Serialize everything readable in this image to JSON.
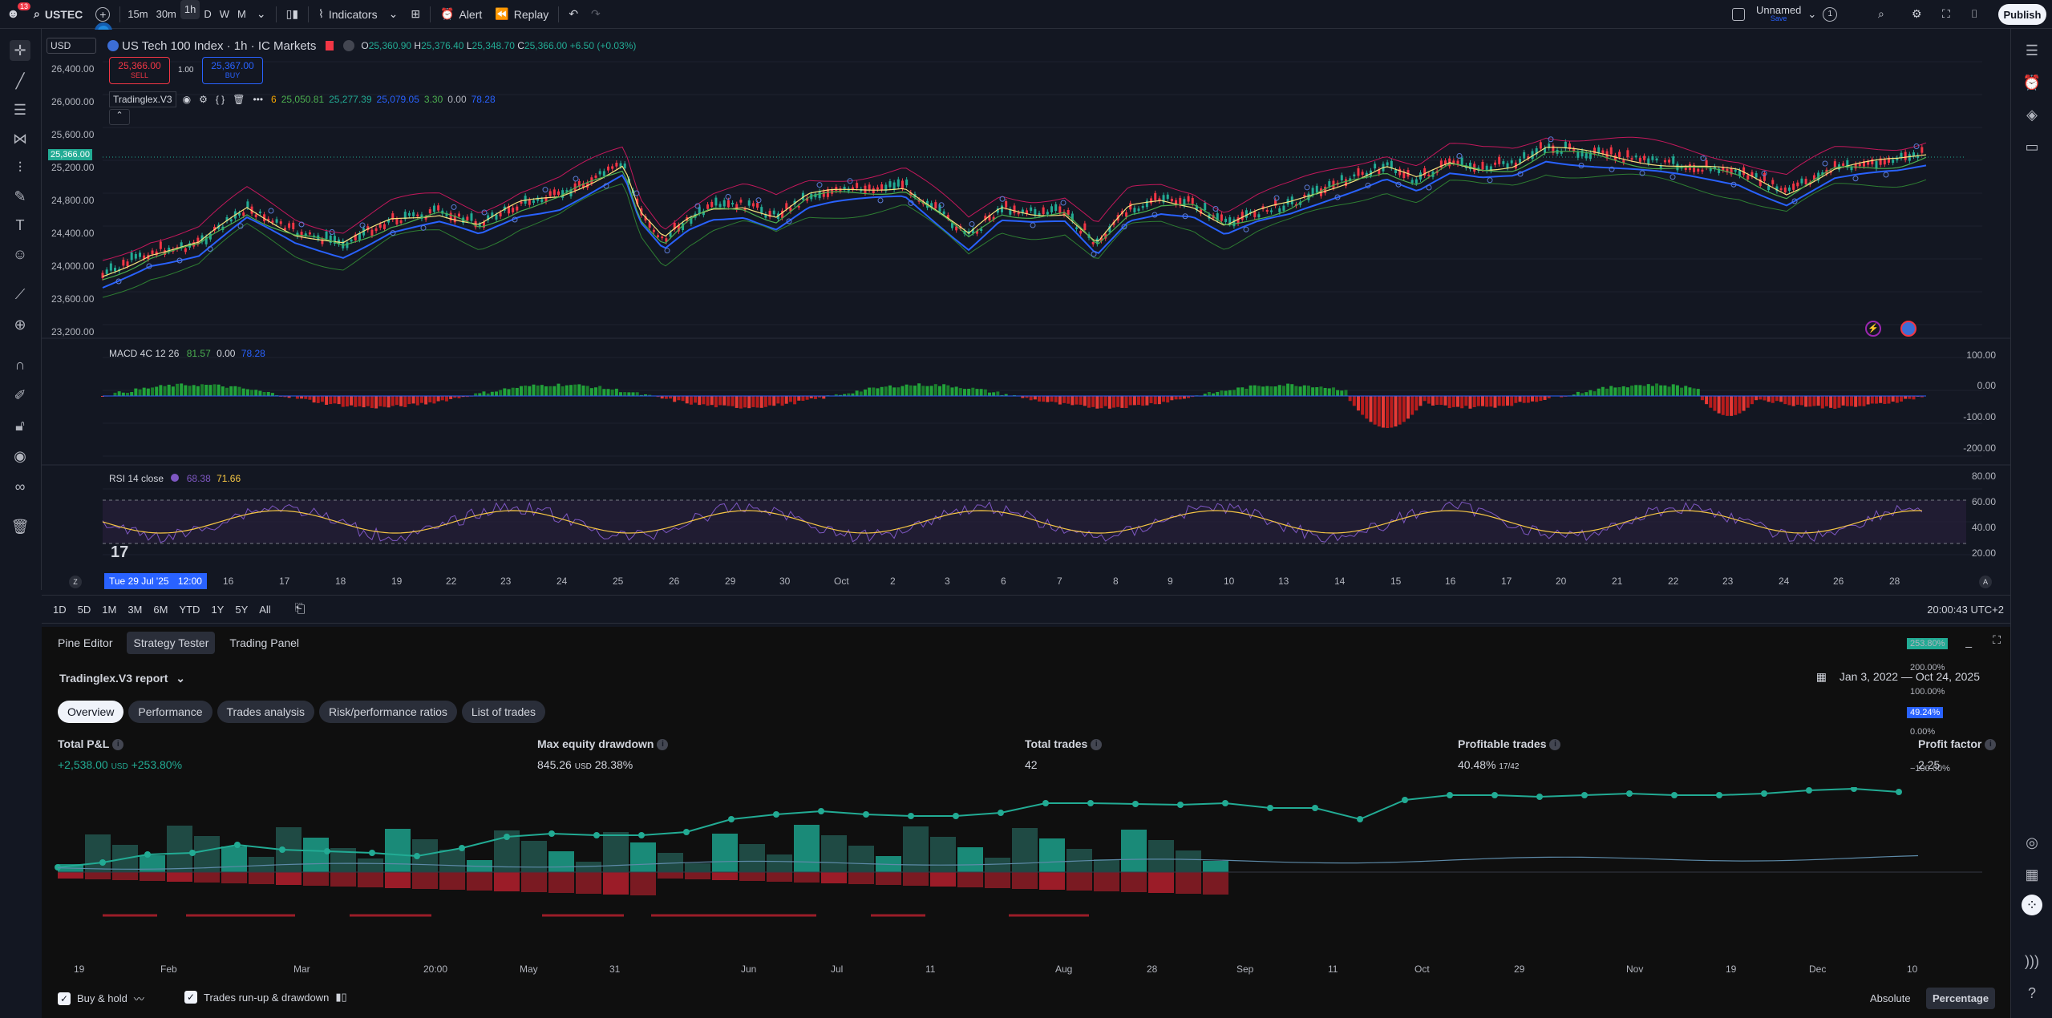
{
  "topbar": {
    "notif_count": "13",
    "symbol": "USTEC",
    "intervals": [
      "15m",
      "30m",
      "1h",
      "D",
      "W",
      "M"
    ],
    "indicators_label": "Indicators",
    "alert_label": "Alert",
    "replay_label": "Replay",
    "layout_name": "Unnamed",
    "layout_sub": "Save",
    "layout_count": "1",
    "publish_label": "Publish"
  },
  "legend": {
    "currency": "USD",
    "title": "US Tech 100 Index · 1h · IC Markets",
    "ohlc": {
      "o_label": "O",
      "o": "25,360.90",
      "h_label": "H",
      "h": "25,376.40",
      "l_label": "L",
      "l": "25,348.70",
      "c_label": "C",
      "c": "25,366.00",
      "chg": "+6.50 (+0.03%)"
    },
    "sell_price": "25,366.00",
    "sell_label": "SELL",
    "spread": "1.00",
    "buy_price": "25,367.00",
    "buy_label": "BUY",
    "indicator_name": "Tradinglex.V3",
    "indicator_vals": [
      "6",
      "25,050.81",
      "25,277.39",
      "25,079.05",
      "3.30",
      "0.00",
      "78.28"
    ]
  },
  "price_scale": [
    "26,400.00",
    "26,000.00",
    "25,600.00",
    "25,200.00",
    "24,800.00",
    "24,400.00",
    "24,000.00",
    "23,600.00",
    "23,200.00"
  ],
  "current_price": "25,366.00",
  "macd": {
    "label": "MACD 4C 12 26",
    "v1": "81.57",
    "v2": "0.00",
    "v3": "78.28",
    "scale": [
      "100.00",
      "0.00",
      "-100.00",
      "-200.00"
    ]
  },
  "rsi": {
    "label": "RSI 14 close",
    "v1": "68.38",
    "v2": "71.66",
    "scale": [
      "80.00",
      "60.00",
      "40.00",
      "20.00"
    ]
  },
  "time_axis": {
    "cursor_date": "Tue 29 Jul '25",
    "cursor_time": "12:00",
    "ticks": [
      "15",
      "16",
      "17",
      "18",
      "19",
      "22",
      "23",
      "24",
      "25",
      "26",
      "29",
      "30",
      "Oct",
      "2",
      "3",
      "6",
      "7",
      "8",
      "9",
      "10",
      "13",
      "14",
      "15",
      "16",
      "17",
      "20",
      "21",
      "22",
      "23",
      "24",
      "26",
      "28"
    ]
  },
  "ranges": [
    "1D",
    "5D",
    "1M",
    "3M",
    "6M",
    "YTD",
    "1Y",
    "5Y",
    "All"
  ],
  "clock": "20:00:43 UTC+2",
  "panel_tabs": [
    "Pine Editor",
    "Strategy Tester",
    "Trading Panel"
  ],
  "report": {
    "title": "Tradinglex.V3 report",
    "date_range": "Jan 3, 2022 — Oct 24, 2025",
    "subtabs": [
      "Overview",
      "Performance",
      "Trades analysis",
      "Risk/performance ratios",
      "List of trades"
    ],
    "stats": {
      "pnl_title": "Total P&L",
      "pnl_val": "+2,538.00",
      "pnl_unit": "USD",
      "pnl_pct": "+253.80%",
      "dd_title": "Max equity drawdown",
      "dd_val": "845.26",
      "dd_unit": "USD",
      "dd_pct": "28.38%",
      "trades_title": "Total trades",
      "trades_val": "42",
      "prof_title": "Profitable trades",
      "prof_val": "40.48%",
      "prof_sub": "17/42",
      "pf_title": "Profit factor",
      "pf_val": "2.25"
    },
    "eq_scale": [
      "253.80%",
      "200.00%",
      "100.00%",
      "49.24%",
      "0.00%",
      "−100.00%"
    ],
    "eq_xticks": [
      "19",
      "Feb",
      "Mar",
      "20:00",
      "May",
      "31",
      "Jun",
      "Jul",
      "11",
      "Aug",
      "28",
      "Sep",
      "11",
      "Oct",
      "29",
      "Nov",
      "19",
      "Dec",
      "10"
    ],
    "buy_hold_label": "Buy & hold",
    "runup_label": "Trades run-up & drawdown",
    "absolute_label": "Absolute",
    "percentage_label": "Percentage"
  },
  "colors": {
    "bg": "#131722",
    "up": "#22ab94",
    "down": "#f23645",
    "accent": "#2962ff",
    "panel": "#0f0f0f"
  }
}
